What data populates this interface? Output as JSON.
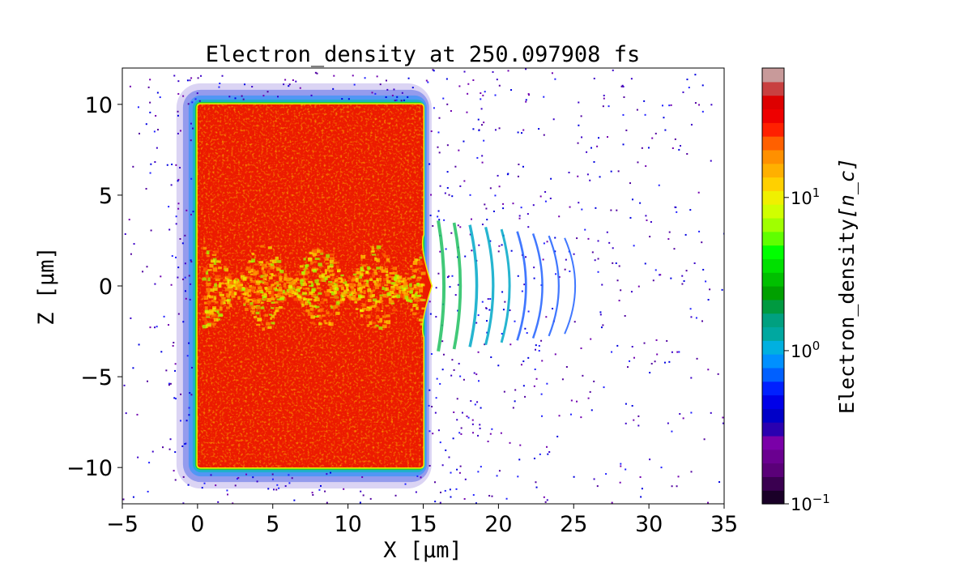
{
  "chart_data": {
    "type": "heatmap",
    "title": "Electron_density at 250.097908 fs",
    "xlabel": "X [μm]",
    "ylabel": "Z [μm]",
    "xlim": [
      -5,
      35
    ],
    "ylim": [
      -12,
      12
    ],
    "x_ticks": [
      -5,
      0,
      5,
      10,
      15,
      20,
      25,
      30,
      35
    ],
    "x_tick_labels": [
      "−5",
      "0",
      "5",
      "10",
      "15",
      "20",
      "25",
      "30",
      "35"
    ],
    "y_ticks": [
      10,
      5,
      0,
      -5,
      -10
    ],
    "y_tick_labels": [
      "10",
      "5",
      "0",
      "−5",
      "−10"
    ],
    "colorbar": {
      "label": "Electron_density",
      "unit_label": "[n_c]",
      "scale": "log",
      "range": [
        0.1,
        70
      ],
      "tick_labels": [
        {
          "mantissa": "10",
          "exp": "1",
          "value": 10
        },
        {
          "mantissa": "10",
          "exp": "0",
          "value": 1
        },
        {
          "mantissa": "10",
          "exp": "−1",
          "value": 0.1
        }
      ],
      "colors": [
        "#1a0028",
        "#3a0050",
        "#5a0078",
        "#6a0090",
        "#7a00a8",
        "#2a00b0",
        "#0000c8",
        "#0000e8",
        "#0020ff",
        "#0060ff",
        "#0090ff",
        "#00b0e0",
        "#00a8a0",
        "#00a080",
        "#009a40",
        "#00a000",
        "#00c000",
        "#00e000",
        "#00ff00",
        "#60ff00",
        "#a0ff00",
        "#d0ff00",
        "#f0f000",
        "#ffd000",
        "#ffb000",
        "#ff9000",
        "#ff6000",
        "#ff2000",
        "#ee0000",
        "#dd0000",
        "#c84040",
        "#c89a9a"
      ]
    },
    "regions": [
      {
        "name": "target",
        "x_range": [
          0,
          15
        ],
        "z_range": [
          -10,
          10
        ],
        "density": "high",
        "color": "#ec1a00"
      },
      {
        "name": "channel",
        "x_range": [
          0,
          15
        ],
        "z_range": [
          -2,
          2
        ],
        "density": "mixed"
      },
      {
        "name": "wave-fronts",
        "x_range": [
          15,
          26
        ],
        "z_range": [
          -3.5,
          3.5
        ],
        "density": "low"
      }
    ]
  }
}
